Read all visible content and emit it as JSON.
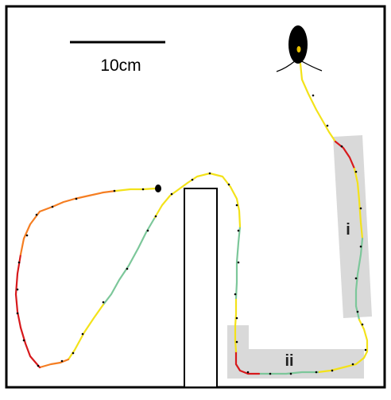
{
  "scale_bar": {
    "label": "10cm"
  },
  "zones": [
    {
      "id": "i",
      "label": "i"
    },
    {
      "id": "ii",
      "label": "ii"
    }
  ],
  "colors": {
    "frame": "#000000",
    "zone_fill": "#d9d9d9",
    "path_low": "#d7191c",
    "path_mid_low": "#f57e22",
    "path_mid": "#f3e21a",
    "path_high": "#7cc79a"
  },
  "legend_semantics": {
    "icons": [
      "insect-icon",
      "start-dot-icon"
    ]
  }
}
